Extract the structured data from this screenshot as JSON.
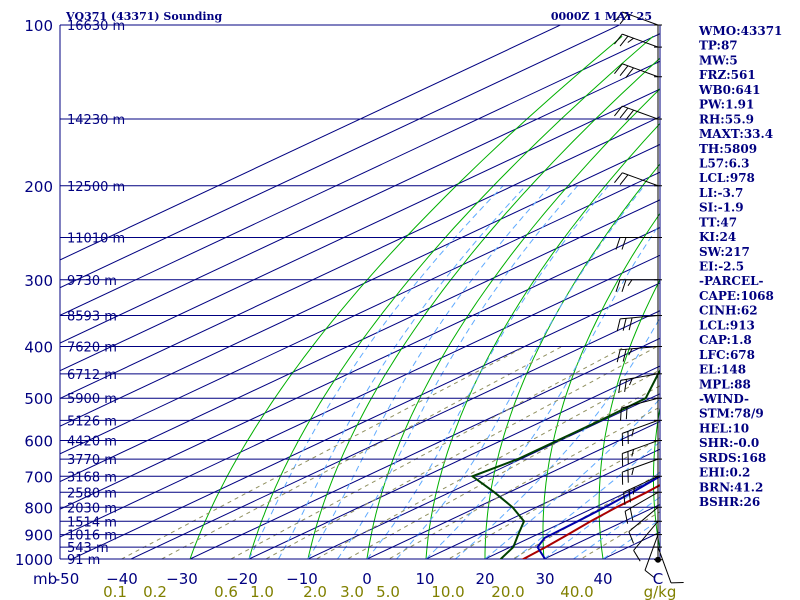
{
  "chart_data": {
    "type": "skew-t",
    "title": "VQ371 (43371) Sounding",
    "datetime": "0000Z  1 MAY 25",
    "pressure_axis": {
      "unit_label": "mb",
      "ylim": [
        1000,
        100
      ],
      "scale": "log",
      "tick_labels": [
        "100",
        "200",
        "300",
        "400",
        "500",
        "600",
        "700",
        "800",
        "900",
        "1000"
      ]
    },
    "temperature_axis": {
      "unit": "C",
      "xlim": [
        -50,
        50
      ],
      "ticks": [
        -50,
        -40,
        -30,
        -20,
        -10,
        0,
        10,
        20,
        30,
        40
      ],
      "tick_labels": [
        "-50",
        "−40",
        "−30",
        "−20",
        "−10",
        "0",
        "10",
        "20",
        "30",
        "40",
        "C"
      ]
    },
    "mixing_ratio_labels": [
      "0.1",
      "0.2",
      "0.6",
      "1.0",
      "2.0",
      "3.0",
      "5.0",
      "10.0",
      "20.0",
      "40.0",
      "g/kg"
    ],
    "height_levels": [
      {
        "p": 100,
        "label": "16630 m"
      },
      {
        "p": 150,
        "label": "14230 m"
      },
      {
        "p": 200,
        "label": "12500 m"
      },
      {
        "p": 250,
        "label": "11010 m"
      },
      {
        "p": 300,
        "label": "9730 m"
      },
      {
        "p": 350,
        "label": "8593 m"
      },
      {
        "p": 400,
        "label": "7620 m"
      },
      {
        "p": 450,
        "label": "6712 m"
      },
      {
        "p": 500,
        "label": "5900 m"
      },
      {
        "p": 550,
        "label": "5126 m"
      },
      {
        "p": 600,
        "label": "4420 m"
      },
      {
        "p": 650,
        "label": "3770 m"
      },
      {
        "p": 700,
        "label": "3168 m"
      },
      {
        "p": 750,
        "label": "2580 m"
      },
      {
        "p": 800,
        "label": "2030 m"
      },
      {
        "p": 850,
        "label": "1514 m"
      },
      {
        "p": 900,
        "label": "1016 m"
      },
      {
        "p": 950,
        "label": "543 m"
      },
      {
        "p": 1000,
        "label": "91 m"
      }
    ],
    "series": [
      {
        "name": "Temperature",
        "color": "#aa0000",
        "points": [
          [
            1003,
            27.4
          ],
          [
            1000,
            26.5
          ],
          [
            950,
            26.0
          ],
          [
            900,
            25.2
          ],
          [
            850,
            24.3
          ],
          [
            800,
            23.6
          ],
          [
            750,
            23.3
          ],
          [
            700,
            22.6
          ],
          [
            650,
            21.6
          ],
          [
            600,
            19.6
          ],
          [
            550,
            16.2
          ],
          [
            500,
            12.2
          ],
          [
            450,
            7.6
          ],
          [
            400,
            2.0
          ],
          [
            350,
            -4.8
          ],
          [
            300,
            -13.0
          ],
          [
            250,
            -22.8
          ],
          [
            200,
            -35.5
          ],
          [
            150,
            -52.0
          ],
          [
            100,
            -68.5
          ]
        ]
      },
      {
        "name": "Dewpoint",
        "color": "#004000",
        "points": [
          [
            1003,
            22.8
          ],
          [
            950,
            20.5
          ],
          [
            900,
            16.8
          ],
          [
            850,
            13.0
          ],
          [
            800,
            6.0
          ],
          [
            750,
            -2.5
          ],
          [
            700,
            -12.0
          ],
          [
            650,
            -10.5
          ],
          [
            600,
            -10.5
          ],
          [
            550,
            -10.5
          ],
          [
            500,
            -10.8
          ],
          [
            450,
            -17.5
          ],
          [
            400,
            -24.5
          ],
          [
            350,
            -24.5
          ],
          [
            300,
            -24.5
          ],
          [
            250,
            -37.0
          ],
          [
            200,
            -49.5
          ],
          [
            150,
            -66.0
          ],
          [
            100,
            -76.0
          ]
        ]
      },
      {
        "name": "Parcel",
        "color": "#0000aa",
        "points": [
          [
            1003,
            30.5
          ],
          [
            950,
            24.6
          ],
          [
            913,
            22.5
          ],
          [
            850,
            22.1
          ],
          [
            800,
            21.6
          ],
          [
            750,
            20.9
          ],
          [
            700,
            19.8
          ],
          [
            650,
            18.3
          ],
          [
            600,
            16.3
          ],
          [
            550,
            13.4
          ],
          [
            500,
            9.3
          ],
          [
            450,
            4.8
          ],
          [
            400,
            -0.2
          ],
          [
            350,
            -6.4
          ],
          [
            300,
            -13.8
          ],
          [
            250,
            -23.8
          ],
          [
            200,
            -36.8
          ],
          [
            150,
            -56.5
          ],
          [
            100,
            -80.8
          ]
        ]
      }
    ],
    "wind_barbs": [
      {
        "p": 1003,
        "speed_kt": 0,
        "dir": 0
      },
      {
        "p": 950,
        "speed_kt": 10,
        "dir": 160
      },
      {
        "p": 900,
        "speed_kt": 10,
        "dir": 200
      },
      {
        "p": 850,
        "speed_kt": 10,
        "dir": 220
      },
      {
        "p": 800,
        "speed_kt": 10,
        "dir": 230
      },
      {
        "p": 750,
        "speed_kt": 20,
        "dir": 240
      },
      {
        "p": 700,
        "speed_kt": 25,
        "dir": 245
      },
      {
        "p": 650,
        "speed_kt": 25,
        "dir": 250
      },
      {
        "p": 600,
        "speed_kt": 25,
        "dir": 250
      },
      {
        "p": 550,
        "speed_kt": 25,
        "dir": 250
      },
      {
        "p": 500,
        "speed_kt": 20,
        "dir": 255
      },
      {
        "p": 450,
        "speed_kt": 25,
        "dir": 260
      },
      {
        "p": 400,
        "speed_kt": 25,
        "dir": 265
      },
      {
        "p": 350,
        "speed_kt": 30,
        "dir": 265
      },
      {
        "p": 300,
        "speed_kt": 25,
        "dir": 270
      },
      {
        "p": 250,
        "speed_kt": 20,
        "dir": 270
      },
      {
        "p": 200,
        "speed_kt": 20,
        "dir": 290
      },
      {
        "p": 150,
        "speed_kt": 30,
        "dir": 290
      },
      {
        "p": 125,
        "speed_kt": 30,
        "dir": 290
      },
      {
        "p": 110,
        "speed_kt": 25,
        "dir": 290
      },
      {
        "p": 100,
        "speed_kt": 20,
        "dir": 290
      }
    ],
    "grid": true
  },
  "indices": [
    "WMO:43371",
    "TP:87",
    "MW:5",
    "FRZ:561",
    "WB0:641",
    "PW:1.91",
    "RH:55.9",
    "MAXT:33.4",
    "TH:5809",
    "L57:6.3",
    "LCL:978",
    "LI:-3.7",
    "SI:-1.9",
    "TT:47",
    "KI:24",
    "SW:217",
    "EI:-2.5",
    "-PARCEL-",
    "CAPE:1068",
    "CINH:62",
    "LCL:913",
    "CAP:1.8",
    "LFC:678",
    "EL:148",
    "MPL:88",
    "-WIND-",
    "STM:78/9",
    "HEL:10",
    "SHR:-0.0",
    "SRDS:168",
    "EHI:0.2",
    "BRN:41.2",
    "BSHR:26"
  ],
  "colors": {
    "isobar": "#000080",
    "isotherm": "#000080",
    "dry_adiabat": "#00b000",
    "moist_adiabat": "#5faaff",
    "mixing_ratio": "#909060",
    "temperature": "#aa0000",
    "dewpoint": "#004000",
    "parcel": "#0000aa",
    "text": "#000080"
  }
}
